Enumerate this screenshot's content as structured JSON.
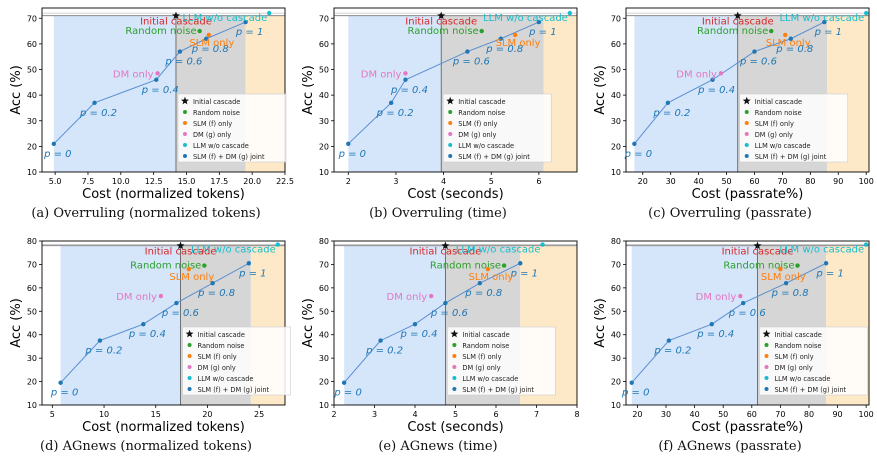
{
  "legend_items": [
    "Initial cascade",
    "Random noise",
    "SLM (f) only",
    "DM (g) only",
    "LLM w/o cascade",
    "SLM (f) + DM (g) joint"
  ],
  "colors": {
    "initial": "#111111",
    "random": "#2ca02c",
    "slm": "#ff7f0e",
    "dm": "#e377c2",
    "llm": "#17becf",
    "joint": "#1f77b4",
    "fill_left": "#d5e6fb",
    "fill_mid": "#d6d6d6",
    "fill_right": "#fde8c8"
  },
  "labels": {
    "initial": "Initial cascade",
    "random": "Random noise",
    "slm": "SLM only",
    "dm": "DM only",
    "llm": "LLM w/o cascade"
  },
  "chart_data": [
    {
      "type": "scatter",
      "caption": "(a) Overruling (normalized tokens)",
      "xlabel": "Cost (normalized tokens)",
      "ylabel": "Acc (%)",
      "xlim": [
        4,
        22.5
      ],
      "ylim": [
        10,
        74
      ],
      "xticks": [
        5.0,
        7.5,
        10.0,
        12.5,
        15.0,
        17.5,
        20.0,
        22.5
      ],
      "xtick_labels": [
        "5.0",
        "7.5",
        "10.0",
        "12.5",
        "15.0",
        "17.5",
        "20.0",
        "22.5"
      ],
      "yticks": [
        10,
        20,
        30,
        40,
        50,
        60,
        70
      ],
      "regions": [
        14.2,
        19.5
      ],
      "joint": {
        "x": [
          4.9,
          8.0,
          12.7,
          14.5,
          16.5,
          19.5
        ],
        "y": [
          21,
          37,
          46,
          57,
          62,
          68.5
        ],
        "labels": [
          "p = 0",
          "p = 0.2",
          "p = 0.4",
          "p = 0.6",
          "p = 0.8",
          "p = 1"
        ]
      },
      "initial": {
        "x": 14.2,
        "y": 71
      },
      "random": {
        "x": 16.0,
        "y": 65
      },
      "slm": {
        "x": 16.7,
        "y": 63.5
      },
      "dm": {
        "x": 12.8,
        "y": 48.5
      },
      "llm": {
        "x": 21.3,
        "y": 72
      },
      "legend": true
    },
    {
      "type": "scatter",
      "caption": "(b) Overruling (time)",
      "xlabel": "Cost (seconds)",
      "ylabel": "Acc (%)",
      "xlim": [
        1.7,
        6.8
      ],
      "ylim": [
        10,
        74
      ],
      "xticks": [
        2,
        3,
        4,
        5,
        6
      ],
      "xtick_labels": [
        "2",
        "3",
        "4",
        "5",
        "6"
      ],
      "yticks": [
        10,
        20,
        30,
        40,
        50,
        60,
        70
      ],
      "regions": [
        3.95,
        6.1
      ],
      "joint": {
        "x": [
          2.0,
          2.9,
          3.2,
          4.5,
          5.2,
          6.0
        ],
        "y": [
          21,
          37,
          46,
          57,
          62,
          68.5
        ],
        "labels": [
          "p = 0",
          "p = 0.2",
          "p = 0.4",
          "p = 0.6",
          "p = 0.8",
          "p = 1"
        ]
      },
      "initial": {
        "x": 3.95,
        "y": 71
      },
      "random": {
        "x": 4.8,
        "y": 65
      },
      "slm": {
        "x": 5.5,
        "y": 63.5
      },
      "dm": {
        "x": 3.2,
        "y": 48.5
      },
      "llm": {
        "x": 6.65,
        "y": 72
      },
      "legend": true
    },
    {
      "type": "scatter",
      "caption": "(c) Overruling (passrate)",
      "xlabel": "Cost (passrate%)",
      "ylabel": "Acc (%)",
      "xlim": [
        14,
        101
      ],
      "ylim": [
        10,
        74
      ],
      "xticks": [
        20,
        30,
        40,
        50,
        60,
        70,
        80,
        90,
        100
      ],
      "xtick_labels": [
        "20",
        "30",
        "40",
        "50",
        "60",
        "70",
        "80",
        "90",
        "100"
      ],
      "yticks": [
        10,
        20,
        30,
        40,
        50,
        60,
        70
      ],
      "regions": [
        54,
        86
      ],
      "joint": {
        "x": [
          17,
          29,
          45,
          60,
          73,
          85
        ],
        "y": [
          21,
          37,
          46,
          57,
          62,
          68.5
        ],
        "labels": [
          "p = 0",
          "p = 0.2",
          "p = 0.4",
          "p = 0.6",
          "p = 0.8",
          "p = 1"
        ]
      },
      "initial": {
        "x": 54,
        "y": 71
      },
      "random": {
        "x": 66,
        "y": 65
      },
      "slm": {
        "x": 71,
        "y": 63.5
      },
      "dm": {
        "x": 48,
        "y": 48.5
      },
      "llm": {
        "x": 100,
        "y": 72
      },
      "legend": true
    },
    {
      "type": "scatter",
      "caption": "(d) AGnews (normalized tokens)",
      "xlabel": "Cost (normalized tokens)",
      "ylabel": "Acc (%)",
      "xlim": [
        4,
        27.5
      ],
      "ylim": [
        10,
        80
      ],
      "xticks": [
        5,
        10,
        15,
        20,
        25
      ],
      "xtick_labels": [
        "5",
        "10",
        "15",
        "20",
        "25"
      ],
      "yticks": [
        10,
        20,
        30,
        40,
        50,
        60,
        70,
        80
      ],
      "regions": [
        17.4,
        24.2
      ],
      "joint": {
        "x": [
          5.8,
          9.6,
          13.8,
          17.0,
          20.5,
          24.0
        ],
        "y": [
          19.5,
          37.5,
          44.5,
          53.5,
          62,
          70.5
        ],
        "labels": [
          "p = 0",
          "p = 0.2",
          "p = 0.4",
          "p = 0.6",
          "p = 0.8",
          "p = 1"
        ]
      },
      "initial": {
        "x": 17.4,
        "y": 78
      },
      "random": {
        "x": 19.7,
        "y": 69.5
      },
      "slm": {
        "x": 18.2,
        "y": 68
      },
      "dm": {
        "x": 15.5,
        "y": 56.5
      },
      "llm": {
        "x": 26.8,
        "y": 78.5
      },
      "legend": true
    },
    {
      "type": "scatter",
      "caption": "(e) AGnews (time)",
      "xlabel": "Cost (seconds)",
      "ylabel": "Acc (%)",
      "xlim": [
        2,
        8
      ],
      "ylim": [
        10,
        80
      ],
      "xticks": [
        2,
        3,
        4,
        5,
        6,
        7,
        8
      ],
      "xtick_labels": [
        "2",
        "3",
        "4",
        "5",
        "6",
        "7",
        "8"
      ],
      "yticks": [
        10,
        20,
        30,
        40,
        50,
        60,
        70,
        80
      ],
      "regions": [
        4.75,
        6.6
      ],
      "joint": {
        "x": [
          2.25,
          3.15,
          4.0,
          4.75,
          5.6,
          6.6
        ],
        "y": [
          19.5,
          37.5,
          44.5,
          53.5,
          62,
          70.5
        ],
        "labels": [
          "p = 0",
          "p = 0.2",
          "p = 0.4",
          "p = 0.6",
          "p = 0.8",
          "p = 1"
        ]
      },
      "initial": {
        "x": 4.75,
        "y": 78
      },
      "random": {
        "x": 6.2,
        "y": 69.5
      },
      "slm": {
        "x": 5.8,
        "y": 68
      },
      "dm": {
        "x": 4.4,
        "y": 56.5
      },
      "llm": {
        "x": 7.15,
        "y": 78.5
      },
      "legend": true
    },
    {
      "type": "scatter",
      "caption": "(f) AGnews (passrate)",
      "xlabel": "Cost (passrate%)",
      "ylabel": "Acc (%)",
      "xlim": [
        16,
        101
      ],
      "ylim": [
        10,
        80
      ],
      "xticks": [
        20,
        30,
        40,
        50,
        60,
        70,
        80,
        90,
        100
      ],
      "xtick_labels": [
        "20",
        "30",
        "40",
        "50",
        "60",
        "70",
        "80",
        "90",
        "100"
      ],
      "yticks": [
        10,
        20,
        30,
        40,
        50,
        60,
        70,
        80
      ],
      "regions": [
        62,
        86
      ],
      "joint": {
        "x": [
          18,
          31,
          46,
          57,
          72,
          86
        ],
        "y": [
          19.5,
          37.5,
          44.5,
          53.5,
          62,
          70.5
        ],
        "labels": [
          "p = 0",
          "p = 0.2",
          "p = 0.4",
          "p = 0.6",
          "p = 0.8",
          "p = 1"
        ]
      },
      "initial": {
        "x": 62,
        "y": 78
      },
      "random": {
        "x": 76,
        "y": 69.5
      },
      "slm": {
        "x": 70,
        "y": 68
      },
      "dm": {
        "x": 56,
        "y": 56.5
      },
      "llm": {
        "x": 100,
        "y": 78.5
      },
      "legend": true
    }
  ]
}
